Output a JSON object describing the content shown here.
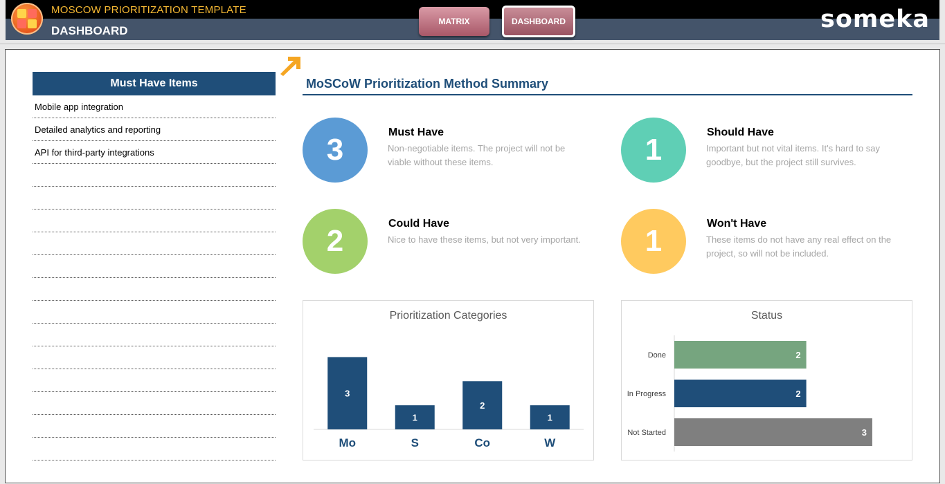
{
  "header": {
    "app_title": "MOSCOW PRIORITIZATION TEMPLATE",
    "page_title": "DASHBOARD",
    "nav": {
      "matrix_label": "MATRIX",
      "dashboard_label": "DASHBOARD"
    },
    "brand": "someka"
  },
  "must_list": {
    "title": "Must Have Items",
    "items": [
      "Mobile app integration",
      "Detailed analytics and reporting",
      "API for third-party integrations",
      "",
      "",
      "",
      "",
      "",
      "",
      "",
      "",
      "",
      "",
      "",
      "",
      ""
    ]
  },
  "summary": {
    "title": "MoSCoW Prioritization Method Summary",
    "categories": [
      {
        "name": "Must Have",
        "count": "3",
        "desc": "Non-negotiable items. The project will not be viable without these items.",
        "color": "#5b9bd5"
      },
      {
        "name": "Should Have",
        "count": "1",
        "desc": "Important but not vital items. It's hard to say goodbye, but the project still survives.",
        "color": "#5fcfb5"
      },
      {
        "name": "Could Have",
        "count": "2",
        "desc": "Nice to have these items, but not very important.",
        "color": "#a3d16b"
      },
      {
        "name": "Won't Have",
        "count": "1",
        "desc": "These items do not have any real effect on the project, so will not be included.",
        "color": "#ffca5f"
      }
    ]
  },
  "chart_data": [
    {
      "type": "bar",
      "title": "Prioritization Categories",
      "categories": [
        "Mo",
        "S",
        "Co",
        "W"
      ],
      "values": [
        3,
        1,
        2,
        1
      ],
      "ylim": [
        0,
        3.5
      ],
      "color": "#1f4e79",
      "grid": false
    },
    {
      "type": "bar",
      "orientation": "horizontal",
      "title": "Status",
      "categories": [
        "Done",
        "In Progress",
        "Not Started"
      ],
      "values": [
        2,
        2,
        3
      ],
      "colors": [
        "#76a57f",
        "#1f4e79",
        "#7f7f7f"
      ],
      "xlim": [
        0,
        3.2
      ],
      "grid": false
    }
  ]
}
